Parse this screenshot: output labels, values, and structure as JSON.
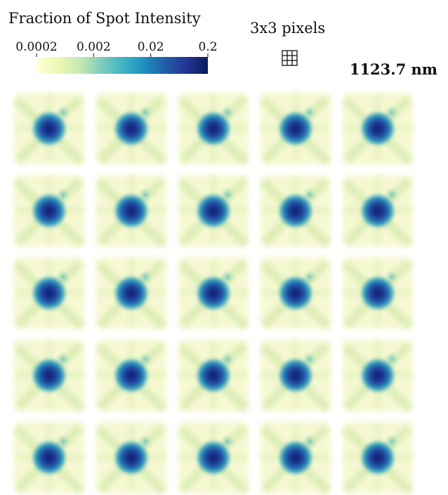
{
  "colorbar": {
    "title": "Fraction of Spot Intensity",
    "ticks": [
      0.0002,
      0.002,
      0.02,
      0.2
    ],
    "lim": [
      0.0002,
      0.2
    ],
    "log": true,
    "colors": [
      "#ffffd9",
      "#edf8b1",
      "#c7e9b4",
      "#7fcdbb",
      "#41b6c4",
      "#1d91c0",
      "#225ea8",
      "#253494",
      "#081d58"
    ]
  },
  "pixel_label": "3x3 pixels",
  "scale_label": "1123.7 nm"
}
